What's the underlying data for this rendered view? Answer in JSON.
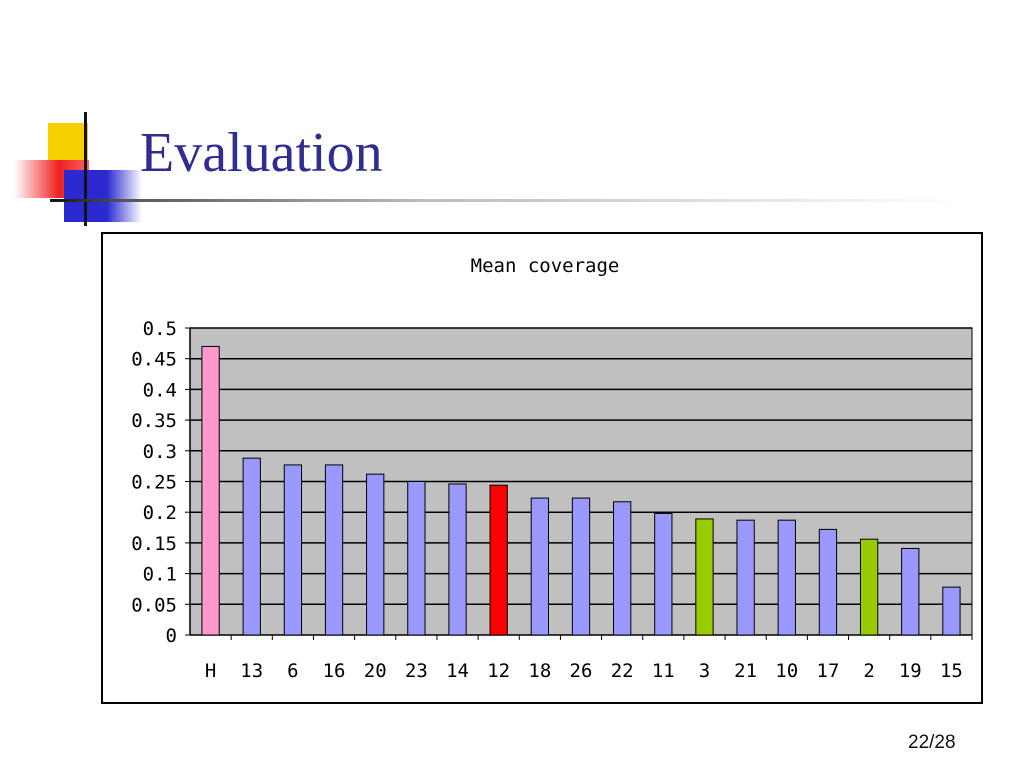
{
  "slide": {
    "title": "Evaluation",
    "page_number": "22/28"
  },
  "chart_data": {
    "type": "bar",
    "title": "Mean coverage",
    "xlabel": "",
    "ylabel": "",
    "ylim": [
      0,
      0.5
    ],
    "yticks": [
      "0",
      "0.05",
      "0.1",
      "0.15",
      "0.2",
      "0.25",
      "0.3",
      "0.35",
      "0.4",
      "0.45",
      "0.5"
    ],
    "grid": true,
    "categories": [
      "H",
      "13",
      "6",
      "16",
      "20",
      "23",
      "14",
      "12",
      "18",
      "26",
      "22",
      "11",
      "3",
      "21",
      "10",
      "17",
      "2",
      "19",
      "15"
    ],
    "values": [
      0.47,
      0.288,
      0.277,
      0.277,
      0.262,
      0.25,
      0.246,
      0.244,
      0.223,
      0.223,
      0.217,
      0.198,
      0.189,
      0.187,
      0.187,
      0.172,
      0.156,
      0.141,
      0.078
    ],
    "bar_colors": [
      "#ff99cc",
      "#9999ff",
      "#9999ff",
      "#9999ff",
      "#9999ff",
      "#9999ff",
      "#9999ff",
      "#ff0000",
      "#9999ff",
      "#9999ff",
      "#9999ff",
      "#9999ff",
      "#99cc00",
      "#9999ff",
      "#9999ff",
      "#9999ff",
      "#99cc00",
      "#9999ff",
      "#9999ff"
    ],
    "plot_background": "#c0c0c0"
  }
}
